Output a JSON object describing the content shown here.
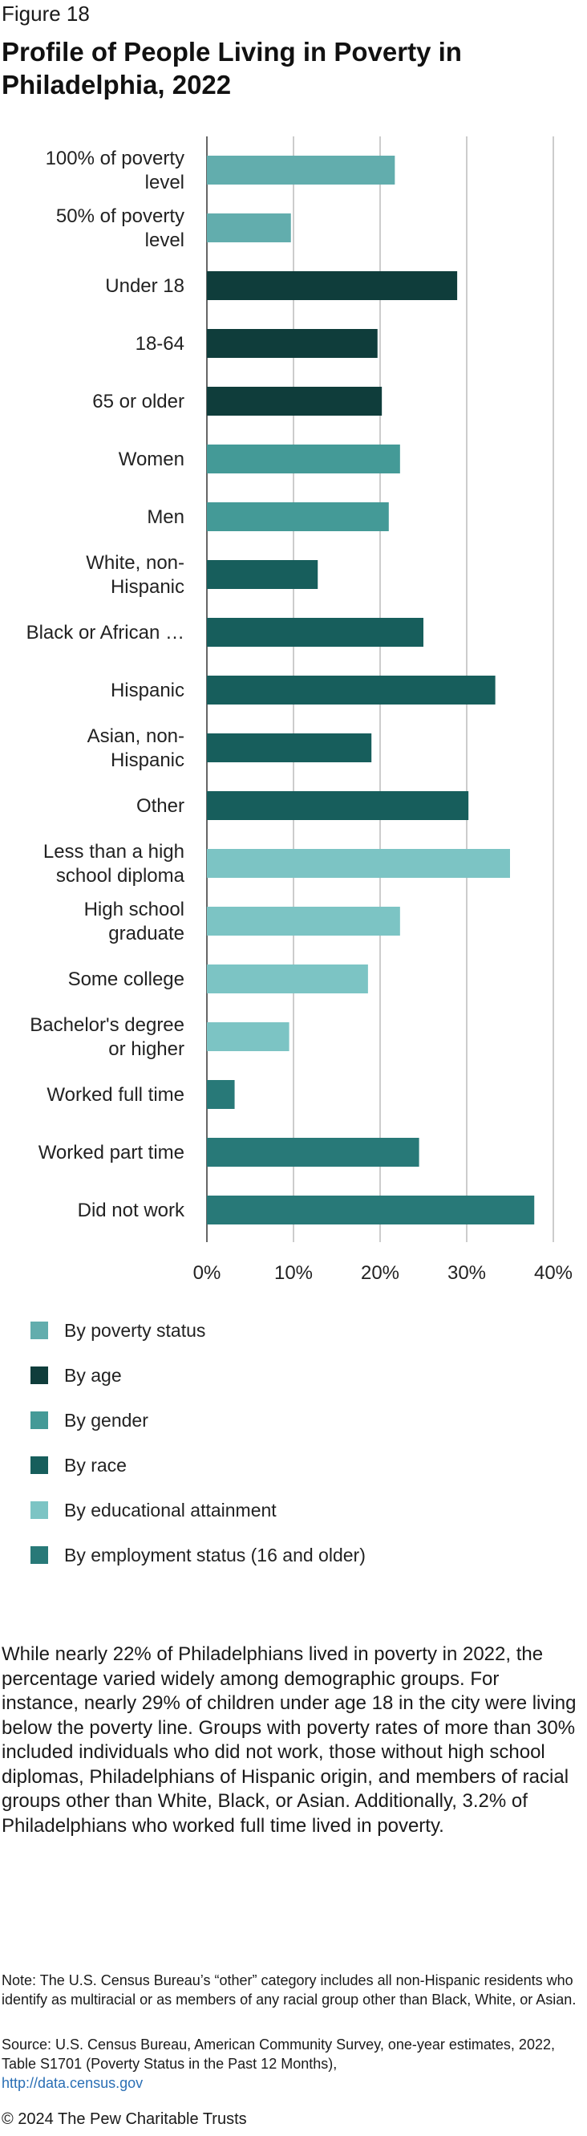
{
  "figure_label": "Figure 18",
  "title": "Profile of People Living in Poverty in Philadelphia, 2022",
  "chart_data": {
    "type": "bar",
    "orientation": "horizontal",
    "categories": [
      "100% of poverty level",
      "50% of poverty level",
      "Under 18",
      "18-64",
      "65 or older",
      "Women",
      "Men",
      "White, non-Hispanic",
      "Black or African …",
      "Hispanic",
      "Asian, non-Hispanic",
      "Other",
      "Less than a high school diploma",
      "High school graduate",
      "Some college",
      "Bachelor's degree or higher",
      "Worked full time",
      "Worked part time",
      "Did not work"
    ],
    "category_lines": [
      [
        "100% of poverty",
        "level"
      ],
      [
        "50% of poverty",
        "level"
      ],
      [
        "Under 18"
      ],
      [
        "18-64"
      ],
      [
        "65 or older"
      ],
      [
        "Women"
      ],
      [
        "Men"
      ],
      [
        "White, non-",
        "Hispanic"
      ],
      [
        "Black or African …"
      ],
      [
        "Hispanic"
      ],
      [
        "Asian, non-",
        "Hispanic"
      ],
      [
        "Other"
      ],
      [
        "Less than a high",
        "school diploma"
      ],
      [
        "High school",
        "graduate"
      ],
      [
        "Some college"
      ],
      [
        "Bachelor's degree",
        "or higher"
      ],
      [
        "Worked full time"
      ],
      [
        "Worked part time"
      ],
      [
        "Did not work"
      ]
    ],
    "values": [
      21.7,
      9.7,
      28.9,
      19.7,
      20.2,
      22.3,
      21.0,
      12.8,
      25.0,
      33.3,
      19.0,
      30.2,
      35.0,
      22.3,
      18.6,
      9.5,
      3.2,
      24.5,
      37.8
    ],
    "groups": [
      0,
      0,
      1,
      1,
      1,
      2,
      2,
      3,
      3,
      3,
      3,
      3,
      4,
      4,
      4,
      4,
      5,
      5,
      5
    ],
    "xlim": [
      0,
      40
    ],
    "x_ticks": [
      "0%",
      "10%",
      "20%",
      "30%",
      "40%"
    ],
    "grid": true,
    "legend_position": "bottom",
    "legend": [
      {
        "label": "By poverty status",
        "color": "#62adad"
      },
      {
        "label": "By age",
        "color": "#0f3d3b"
      },
      {
        "label": "By gender",
        "color": "#449a97"
      },
      {
        "label": "By race",
        "color": "#175e5c"
      },
      {
        "label": "By educational attainment",
        "color": "#7cc4c4"
      },
      {
        "label": "By employment status (16 and older)",
        "color": "#287978"
      }
    ]
  },
  "body_text": "While nearly 22% of Philadelphians lived in poverty in 2022, the percentage varied widely among demographic groups. For instance, nearly 29% of children under age 18 in the city were living below the poverty line. Groups with poverty rates of more than 30% included individuals who did not work, those without high school diplomas, Philadelphians of Hispanic origin, and members of racial groups other than White, Black, or Asian. Additionally, 3.2% of Philadelphians who worked full time lived in poverty.",
  "note": "Note: The U.S. Census Bureau’s “other” category includes all non-Hispanic residents who identify as multiracial or as members of any racial group other than Black, White, or Asian.",
  "source": {
    "text": "Source: U.S. Census Bureau, American Community Survey, one-year estimates, 2022, Table S1701 (Poverty Status in the Past 12 Months),",
    "link": "http://data.census.gov"
  },
  "copyright": "© 2024 The Pew Charitable Trusts"
}
